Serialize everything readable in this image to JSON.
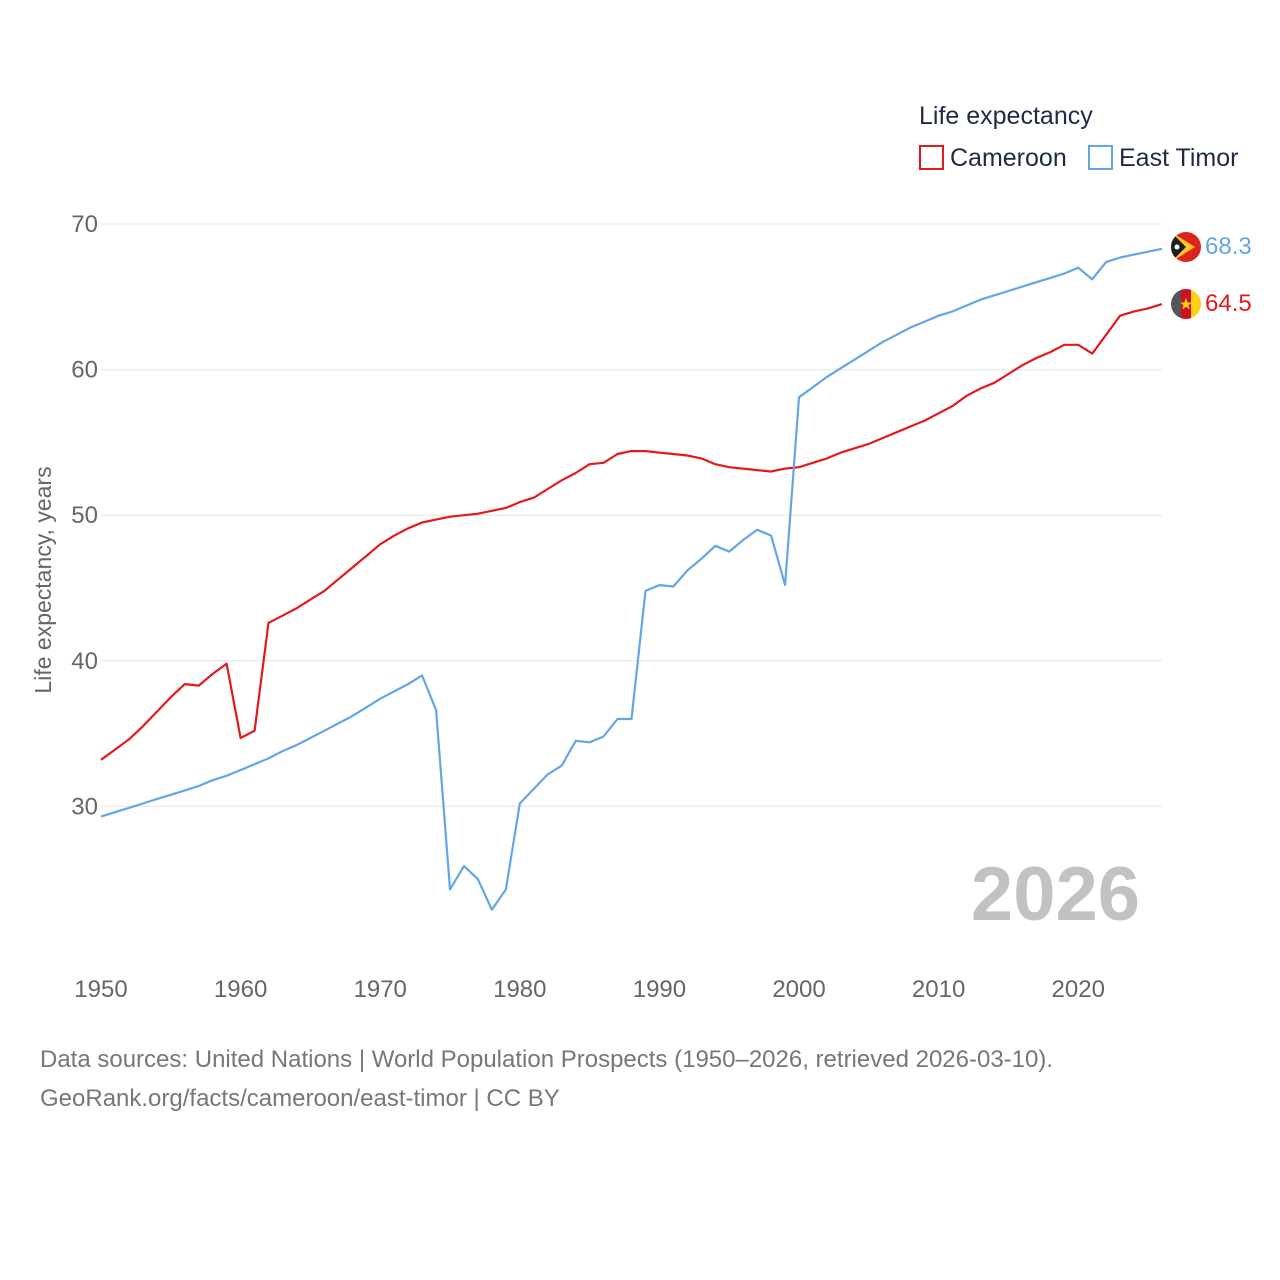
{
  "chart_data": {
    "type": "line",
    "title": "",
    "xlabel": "",
    "ylabel": "Life expectancy, years",
    "xlim": [
      1950,
      2026
    ],
    "ylim": [
      20,
      70
    ],
    "x_ticks": [
      1950,
      1960,
      1970,
      1980,
      1990,
      2000,
      2010,
      2020
    ],
    "y_ticks": [
      30,
      40,
      50,
      60,
      70
    ],
    "grid": true,
    "legend_title": "Life expectancy",
    "legend_position": "top-right",
    "watermark_year": "2026",
    "series": [
      {
        "name": "Cameroon",
        "color": "#e31a1c",
        "end_label": "64.5",
        "flag_icon": "cameroon-flag-icon",
        "x": [
          1950,
          1951,
          1952,
          1953,
          1954,
          1955,
          1956,
          1957,
          1958,
          1959,
          1960,
          1961,
          1962,
          1963,
          1964,
          1965,
          1966,
          1967,
          1968,
          1969,
          1970,
          1971,
          1972,
          1973,
          1974,
          1975,
          1976,
          1977,
          1978,
          1979,
          1980,
          1981,
          1982,
          1983,
          1984,
          1985,
          1986,
          1987,
          1988,
          1989,
          1990,
          1991,
          1992,
          1993,
          1994,
          1995,
          1996,
          1997,
          1998,
          1999,
          2000,
          2001,
          2002,
          2003,
          2004,
          2005,
          2006,
          2007,
          2008,
          2009,
          2010,
          2011,
          2012,
          2013,
          2014,
          2015,
          2016,
          2017,
          2018,
          2019,
          2020,
          2021,
          2022,
          2023,
          2024,
          2025,
          2026
        ],
        "values": [
          33.2,
          33.9,
          34.6,
          35.5,
          36.5,
          37.5,
          38.4,
          38.3,
          39.1,
          39.8,
          34.7,
          35.2,
          42.6,
          43.1,
          43.6,
          44.2,
          44.8,
          45.6,
          46.4,
          47.2,
          48.0,
          48.6,
          49.1,
          49.5,
          49.7,
          49.9,
          50.0,
          50.1,
          50.3,
          50.5,
          50.9,
          51.2,
          51.8,
          52.4,
          52.9,
          53.5,
          53.6,
          54.2,
          54.4,
          54.4,
          54.3,
          54.2,
          54.1,
          53.9,
          53.5,
          53.3,
          53.2,
          53.1,
          53.0,
          53.2,
          53.3,
          53.6,
          53.9,
          54.3,
          54.6,
          54.9,
          55.3,
          55.7,
          56.1,
          56.5,
          57.0,
          57.5,
          58.2,
          58.7,
          59.1,
          59.7,
          60.3,
          60.8,
          61.2,
          61.7,
          61.7,
          61.1,
          62.4,
          63.7,
          64.0,
          64.2,
          64.5
        ]
      },
      {
        "name": "East Timor",
        "color": "#63a6e5",
        "end_label": "68.3",
        "flag_icon": "east-timor-flag-icon",
        "x": [
          1950,
          1951,
          1952,
          1953,
          1954,
          1955,
          1956,
          1957,
          1958,
          1959,
          1960,
          1961,
          1962,
          1963,
          1964,
          1965,
          1966,
          1967,
          1968,
          1969,
          1970,
          1971,
          1972,
          1973,
          1974,
          1975,
          1976,
          1977,
          1978,
          1979,
          1980,
          1981,
          1982,
          1983,
          1984,
          1985,
          1986,
          1987,
          1988,
          1989,
          1990,
          1991,
          1992,
          1993,
          1994,
          1995,
          1996,
          1997,
          1998,
          1999,
          2000,
          2001,
          2002,
          2003,
          2004,
          2005,
          2006,
          2007,
          2008,
          2009,
          2010,
          2011,
          2012,
          2013,
          2014,
          2015,
          2016,
          2017,
          2018,
          2019,
          2020,
          2021,
          2022,
          2023,
          2024,
          2025,
          2026
        ],
        "values": [
          29.3,
          29.6,
          29.9,
          30.2,
          30.5,
          30.8,
          31.1,
          31.4,
          31.8,
          32.1,
          32.5,
          32.9,
          33.3,
          33.8,
          34.2,
          34.7,
          35.2,
          35.7,
          36.2,
          36.8,
          37.4,
          37.9,
          38.4,
          39.0,
          36.6,
          24.3,
          25.9,
          25.0,
          22.9,
          24.3,
          30.2,
          31.2,
          32.2,
          32.8,
          34.5,
          34.4,
          34.8,
          36.0,
          36.0,
          44.8,
          45.2,
          45.1,
          46.2,
          47.0,
          47.9,
          47.5,
          48.3,
          49.0,
          48.6,
          45.2,
          58.1,
          58.8,
          59.5,
          60.1,
          60.7,
          61.3,
          61.9,
          62.4,
          62.9,
          63.3,
          63.7,
          64.0,
          64.4,
          64.8,
          65.1,
          65.4,
          65.7,
          66.0,
          66.3,
          66.6,
          67.0,
          66.2,
          67.4,
          67.7,
          67.9,
          68.1,
          68.3
        ]
      }
    ]
  },
  "footer": {
    "line1": "Data sources: United Nations | World Population Prospects (1950–2026, retrieved 2026-03-10).",
    "line2": "GeoRank.org/facts/cameroon/east-timor | CC BY"
  }
}
